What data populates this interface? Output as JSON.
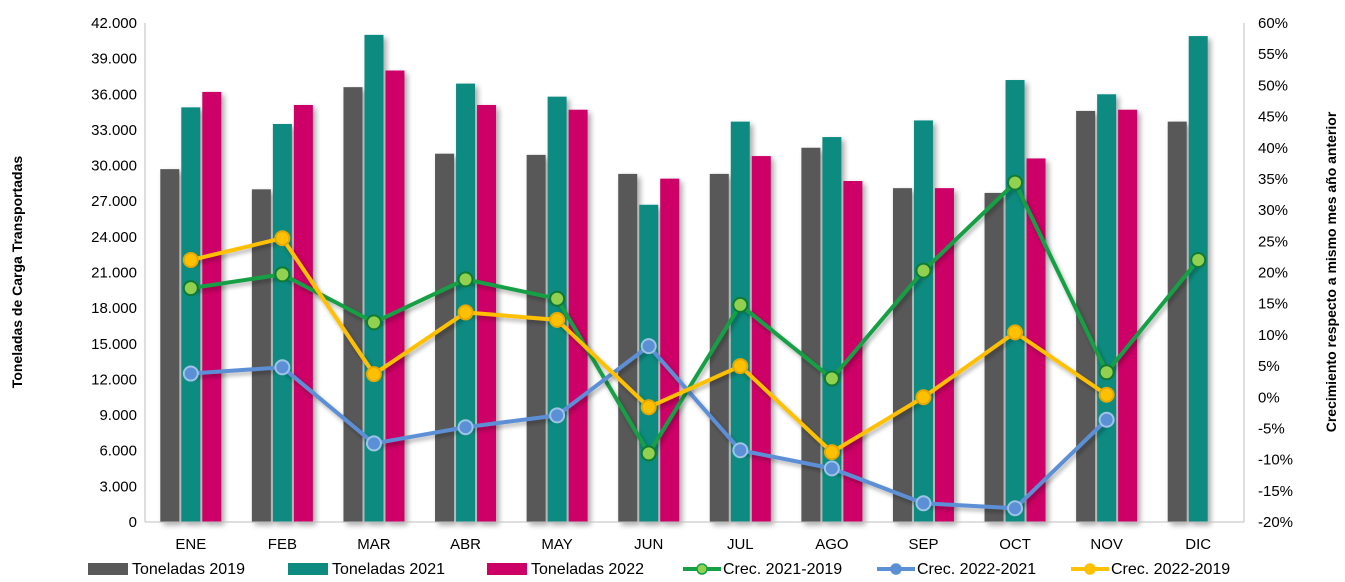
{
  "chart_data": {
    "type": "bar",
    "categories": [
      "ENE",
      "FEB",
      "MAR",
      "ABR",
      "MAY",
      "JUN",
      "JUL",
      "AGO",
      "SEP",
      "OCT",
      "NOV",
      "DIC"
    ],
    "ylabel": "Toneladas de Carga  Transportadas",
    "y2label": "Crecimiento respecto a mismo mes año anterior",
    "ylim": [
      0,
      42000
    ],
    "y2lim": [
      -20,
      60
    ],
    "y_ticks": [
      "0",
      "3.000",
      "6.000",
      "9.000",
      "12.000",
      "15.000",
      "18.000",
      "21.000",
      "24.000",
      "27.000",
      "30.000",
      "33.000",
      "36.000",
      "39.000",
      "42.000"
    ],
    "y2_ticks": [
      "-20%",
      "-15%",
      "-10%",
      "-5%",
      "0%",
      "5%",
      "10%",
      "15%",
      "20%",
      "25%",
      "30%",
      "35%",
      "40%",
      "45%",
      "50%",
      "55%",
      "60%"
    ],
    "bar_series": [
      {
        "name": "Toneladas 2019",
        "color": "#595959",
        "values": [
          29700,
          28000,
          36600,
          31000,
          30900,
          29300,
          29300,
          31500,
          28100,
          27700,
          34600,
          33700
        ]
      },
      {
        "name": "Toneladas 2021",
        "color": "#0E8B80",
        "values": [
          34900,
          33500,
          41000,
          36900,
          35800,
          26700,
          33700,
          32400,
          33800,
          37200,
          36000,
          40900
        ]
      },
      {
        "name": "Toneladas 2022",
        "color": "#CC0066",
        "values": [
          36200,
          35100,
          38000,
          35100,
          34700,
          28900,
          30800,
          28700,
          28100,
          30600,
          34700,
          null
        ]
      }
    ],
    "line_series": [
      {
        "name": "Crec. 2021-2019",
        "color": "#14A044",
        "marker": "#92D050",
        "values": [
          17.5,
          19.7,
          12.0,
          18.9,
          15.8,
          -9.0,
          14.8,
          3.0,
          20.3,
          34.4,
          4.0,
          22.0
        ]
      },
      {
        "name": "Crec. 2022-2021",
        "color": "#5B8FD6",
        "marker": "#5B8FD6",
        "values": [
          3.8,
          4.8,
          -7.4,
          -4.8,
          -2.9,
          8.2,
          -8.5,
          -11.4,
          -17.0,
          -17.8,
          -3.6,
          null
        ]
      },
      {
        "name": "Crec. 2022-2019",
        "color": "#FFC000",
        "marker": "#FFC000",
        "values": [
          22.0,
          25.5,
          3.7,
          13.6,
          12.4,
          -1.6,
          5.0,
          -8.8,
          0.0,
          10.4,
          0.4,
          null
        ]
      }
    ],
    "legend_position": "bottom",
    "grid": false
  }
}
